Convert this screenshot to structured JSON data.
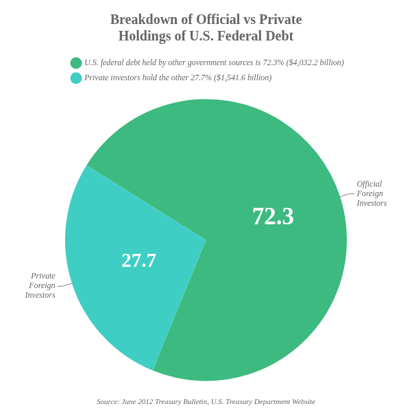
{
  "chart_data": {
    "type": "pie",
    "title": "Breakdown of Official vs Private\nHoldings of U.S. Federal Debt",
    "subtitle": "Source: June 2012 Treasury Bulletin, U.S. Treasury Department Website",
    "categories": [
      "U.S. federal debt held by other government sources is 72.3% ($4,032.2 billion)",
      "Private investors hold the other 27.7% ($1,541.6 billion)"
    ],
    "values": [
      72.3,
      27.7
    ],
    "colors": [
      "#3dba7f",
      "#3ecec4"
    ],
    "annotations": [
      "Official\nForeign\nInvestors",
      "Private\nForeign\nInvestors"
    ],
    "data_labels": true,
    "legend": "top left"
  }
}
